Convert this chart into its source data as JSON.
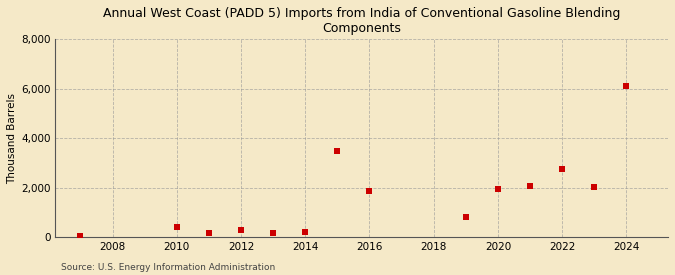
{
  "title": "Annual West Coast (PADD 5) Imports from India of Conventional Gasoline Blending\nComponents",
  "ylabel": "Thousand Barrels",
  "source": "Source: U.S. Energy Information Administration",
  "background_color": "#f5e9c8",
  "plot_bg_color": "#f5e9c8",
  "data_points": [
    {
      "year": 2007,
      "value": 50
    },
    {
      "year": 2010,
      "value": 430
    },
    {
      "year": 2011,
      "value": 190
    },
    {
      "year": 2012,
      "value": 290
    },
    {
      "year": 2013,
      "value": 175
    },
    {
      "year": 2014,
      "value": 210
    },
    {
      "year": 2015,
      "value": 3500
    },
    {
      "year": 2016,
      "value": 1850
    },
    {
      "year": 2019,
      "value": 830
    },
    {
      "year": 2020,
      "value": 1970
    },
    {
      "year": 2021,
      "value": 2080
    },
    {
      "year": 2022,
      "value": 2750
    },
    {
      "year": 2023,
      "value": 2040
    },
    {
      "year": 2024,
      "value": 6100
    }
  ],
  "xlim": [
    2006.2,
    2025.3
  ],
  "ylim": [
    0,
    8000
  ],
  "xticks": [
    2008,
    2010,
    2012,
    2014,
    2016,
    2018,
    2020,
    2022,
    2024
  ],
  "yticks": [
    0,
    2000,
    4000,
    6000,
    8000
  ],
  "marker_color": "#cc0000",
  "marker_size": 5,
  "grid_color": "#999999",
  "title_fontsize": 9,
  "axis_label_fontsize": 7.5,
  "tick_fontsize": 7.5,
  "source_fontsize": 6.5
}
